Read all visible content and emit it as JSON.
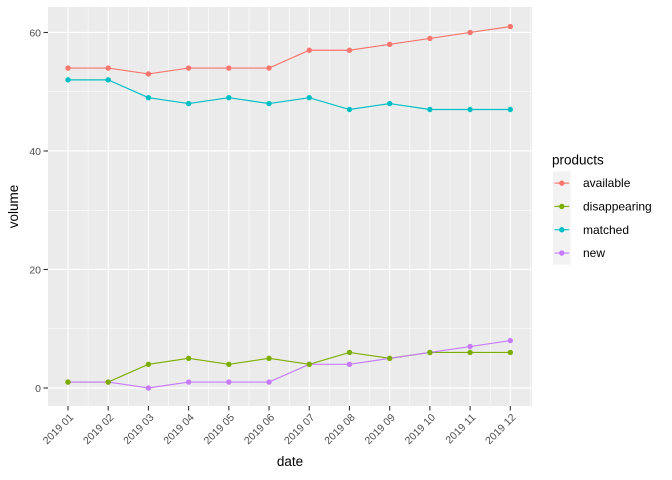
{
  "chart_data": {
    "type": "line",
    "title": "",
    "xlabel": "date",
    "ylabel": "volume",
    "legend_title": "products",
    "legend_position": "right",
    "grid": true,
    "categories": [
      "2019 01",
      "2019 02",
      "2019 03",
      "2019 04",
      "2019 05",
      "2019 06",
      "2019 07",
      "2019 08",
      "2019 09",
      "2019 10",
      "2019 11",
      "2019 12"
    ],
    "series": [
      {
        "name": "available",
        "color": "#F8766D",
        "values": [
          54,
          54,
          53,
          54,
          54,
          54,
          57,
          57,
          58,
          59,
          60,
          61
        ]
      },
      {
        "name": "disappearing",
        "color": "#7CAE00",
        "values": [
          1,
          1,
          4,
          5,
          4,
          5,
          4,
          6,
          5,
          6,
          6,
          6
        ]
      },
      {
        "name": "matched",
        "color": "#00BFC4",
        "values": [
          52,
          52,
          49,
          48,
          49,
          48,
          49,
          47,
          48,
          47,
          47,
          47
        ]
      },
      {
        "name": "new",
        "color": "#C77CFF",
        "values": [
          1,
          1,
          0,
          1,
          1,
          1,
          4,
          4,
          5,
          6,
          7,
          8
        ]
      }
    ],
    "y_ticks": [
      0,
      20,
      40,
      60
    ],
    "y_minor_ticks": [
      10,
      30,
      50
    ],
    "ylim": [
      -3.04,
      64.3
    ],
    "style": {
      "background": "#FFFFFF",
      "panel_bg": "#EBEBEB",
      "grid_color": "#FFFFFF",
      "axis_text_color": "#4D4D4D",
      "axis_title_color": "#000000",
      "tick_mark_color": "#333333",
      "legend_key_bg": "#F2F2F2",
      "legend_text_color": "#000000"
    }
  }
}
